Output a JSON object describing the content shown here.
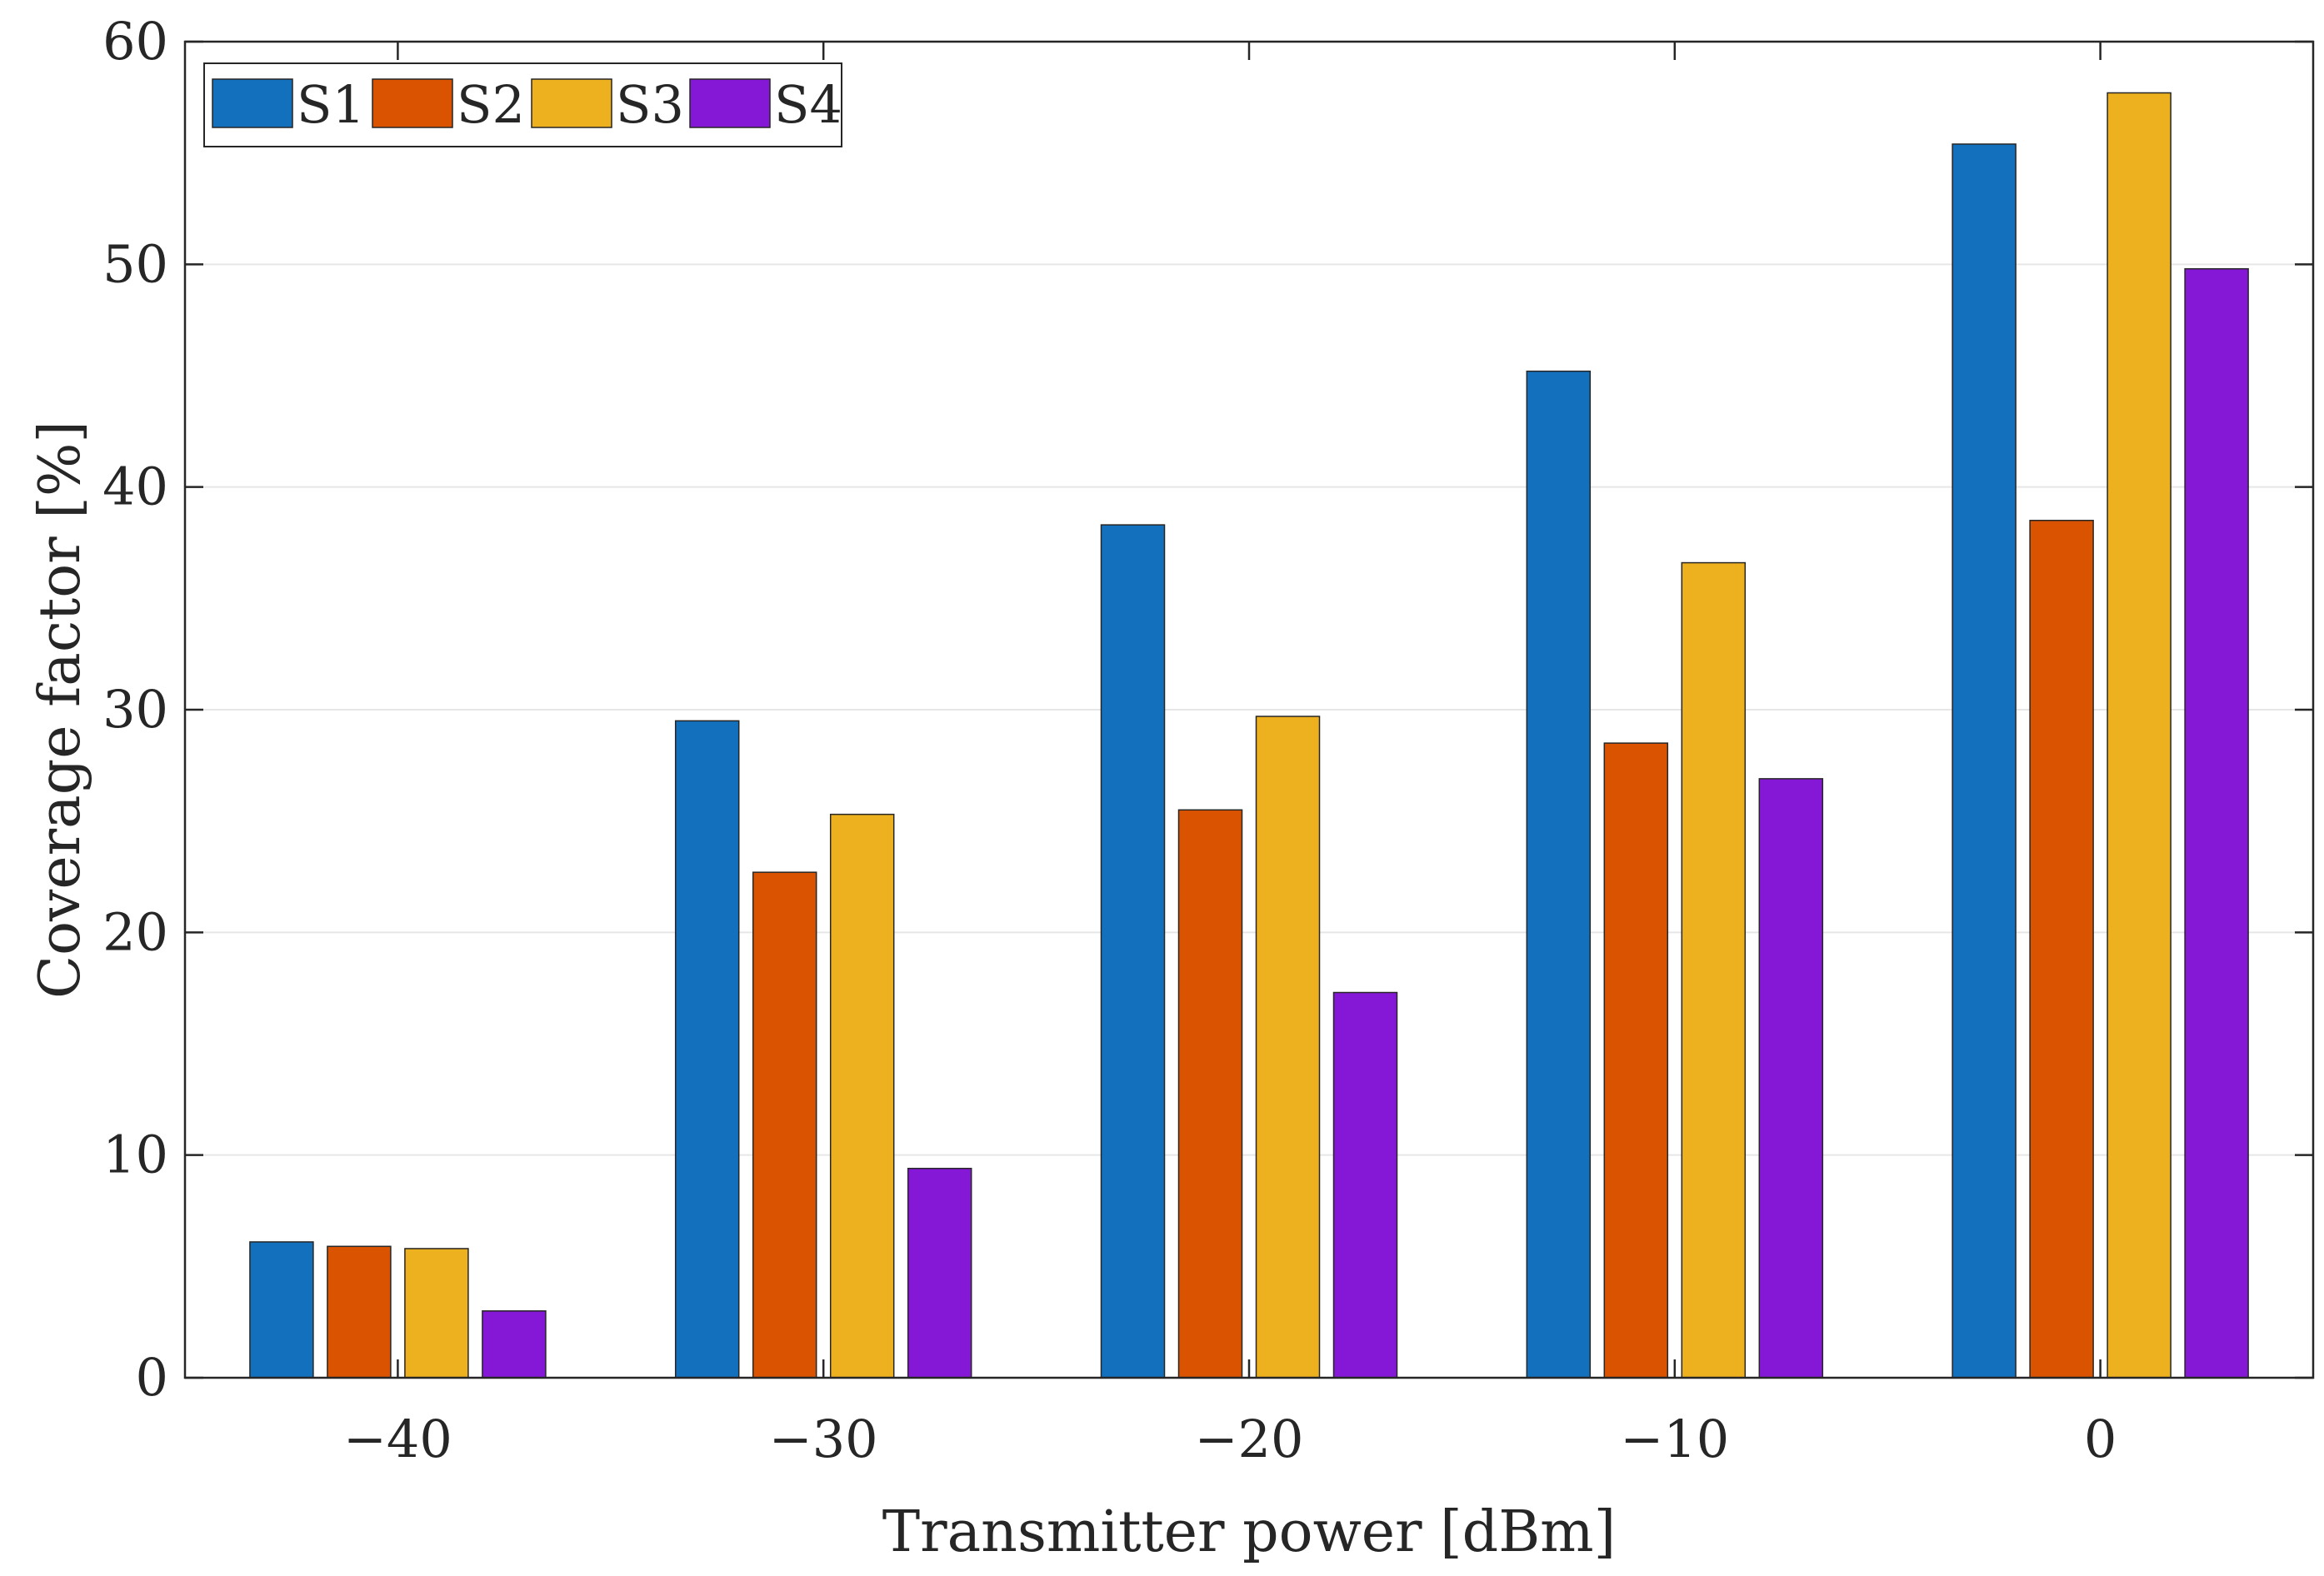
{
  "chart_data": {
    "type": "bar",
    "xlabel": "Transmitter power [dBm]",
    "ylabel": "Coverage factor [%]",
    "categories": [
      "−40",
      "−30",
      "−20",
      "−10",
      "0"
    ],
    "ylim": [
      0,
      60
    ],
    "yticks": [
      "0",
      "10",
      "20",
      "30",
      "40",
      "50",
      "60"
    ],
    "grid": true,
    "legend_position": "top-left",
    "series": [
      {
        "name": "S1",
        "color": "#1270bd",
        "values": [
          6.1,
          29.5,
          38.3,
          45.2,
          55.4
        ]
      },
      {
        "name": "S2",
        "color": "#d95300",
        "values": [
          5.9,
          22.7,
          25.5,
          28.5,
          38.5
        ]
      },
      {
        "name": "S3",
        "color": "#edb120",
        "values": [
          5.8,
          25.3,
          29.7,
          36.6,
          57.7
        ]
      },
      {
        "name": "S4",
        "color": "#8518d6",
        "values": [
          3.0,
          9.4,
          17.3,
          26.9,
          49.8
        ]
      }
    ]
  }
}
